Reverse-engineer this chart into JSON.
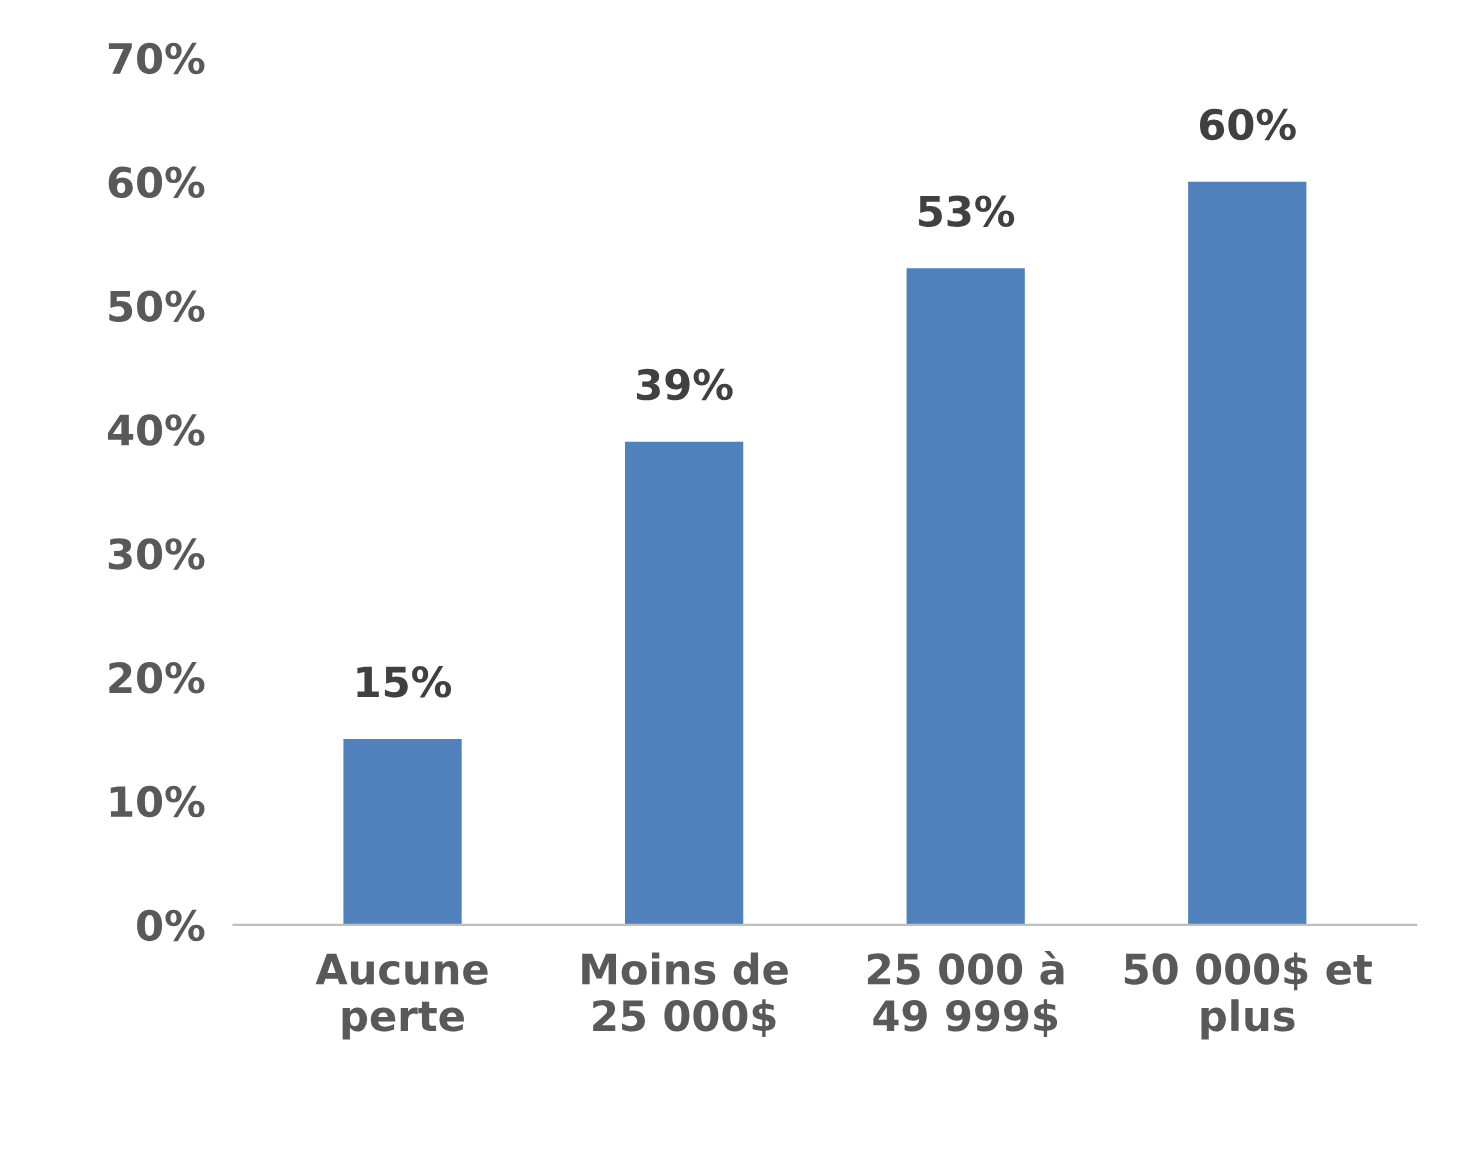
{
  "chart_data": {
    "type": "bar",
    "categories": [
      "Aucune\nperte",
      "Moins de\n25 000$",
      "25 000 à\n49 999$",
      "50 000$ et\nplus"
    ],
    "values": [
      15,
      39,
      53,
      60
    ],
    "value_labels": [
      "15%",
      "39%",
      "53%",
      "60%"
    ],
    "color": "#4f81bd",
    "ylim": [
      0,
      70
    ],
    "yticks": [
      {
        "value": 0,
        "label": "0%"
      },
      {
        "value": 10,
        "label": "10%"
      },
      {
        "value": 20,
        "label": "20%"
      },
      {
        "value": 30,
        "label": "30%"
      },
      {
        "value": 40,
        "label": "40%"
      },
      {
        "value": 50,
        "label": "50%"
      },
      {
        "value": 60,
        "label": "60%"
      },
      {
        "value": 70,
        "label": "70%"
      }
    ],
    "grid": false
  }
}
